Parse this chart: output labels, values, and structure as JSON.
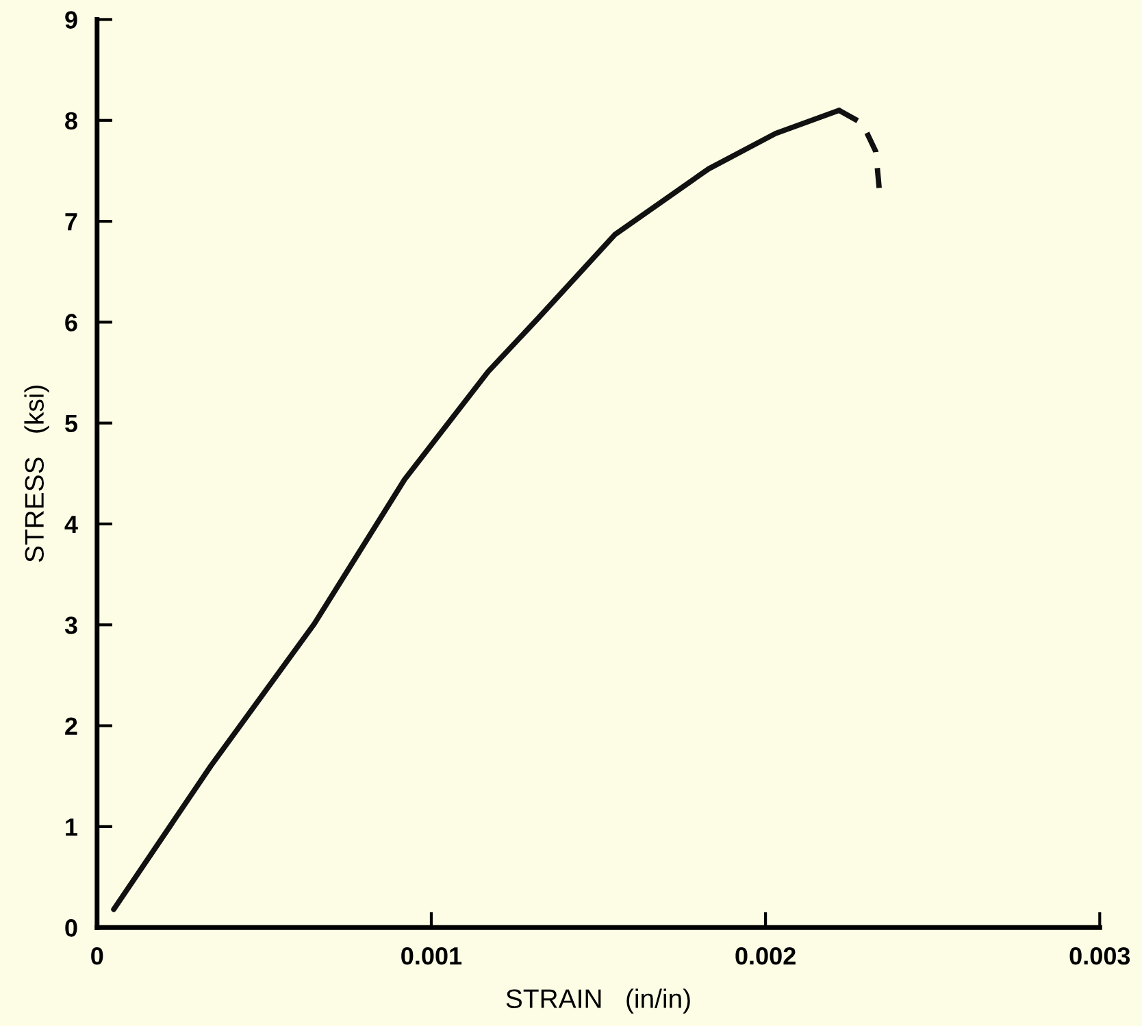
{
  "chart_data": {
    "type": "line",
    "xlabel": "STRAIN   (in/in)",
    "ylabel": "STRESS   (ksi)",
    "xlim": [
      0,
      0.003
    ],
    "ylim": [
      0,
      9
    ],
    "xticks": [
      {
        "value": 0,
        "label": "0"
      },
      {
        "value": 0.001,
        "label": "0.001"
      },
      {
        "value": 0.002,
        "label": "0.002"
      },
      {
        "value": 0.003,
        "label": "0.003"
      }
    ],
    "yticks": [
      0,
      1,
      2,
      3,
      4,
      5,
      6,
      7,
      8,
      9
    ],
    "grid": false,
    "legend": false,
    "series": [
      {
        "color": "#111111",
        "line_style": "solid",
        "x": [
          5e-05,
          0.00034,
          0.00065,
          0.00092,
          0.00117,
          0.00132,
          0.00155,
          0.00183,
          0.00203,
          0.00222
        ],
        "values": [
          0.18,
          1.6,
          3.01,
          4.44,
          5.51,
          6.04,
          6.87,
          7.52,
          7.87,
          8.1
        ]
      },
      {
        "color": "#111111",
        "line_style": "dashed",
        "x": [
          0.00222,
          0.00229,
          0.00233,
          0.00234
        ],
        "values": [
          8.1,
          7.97,
          7.69,
          7.33
        ]
      }
    ]
  }
}
